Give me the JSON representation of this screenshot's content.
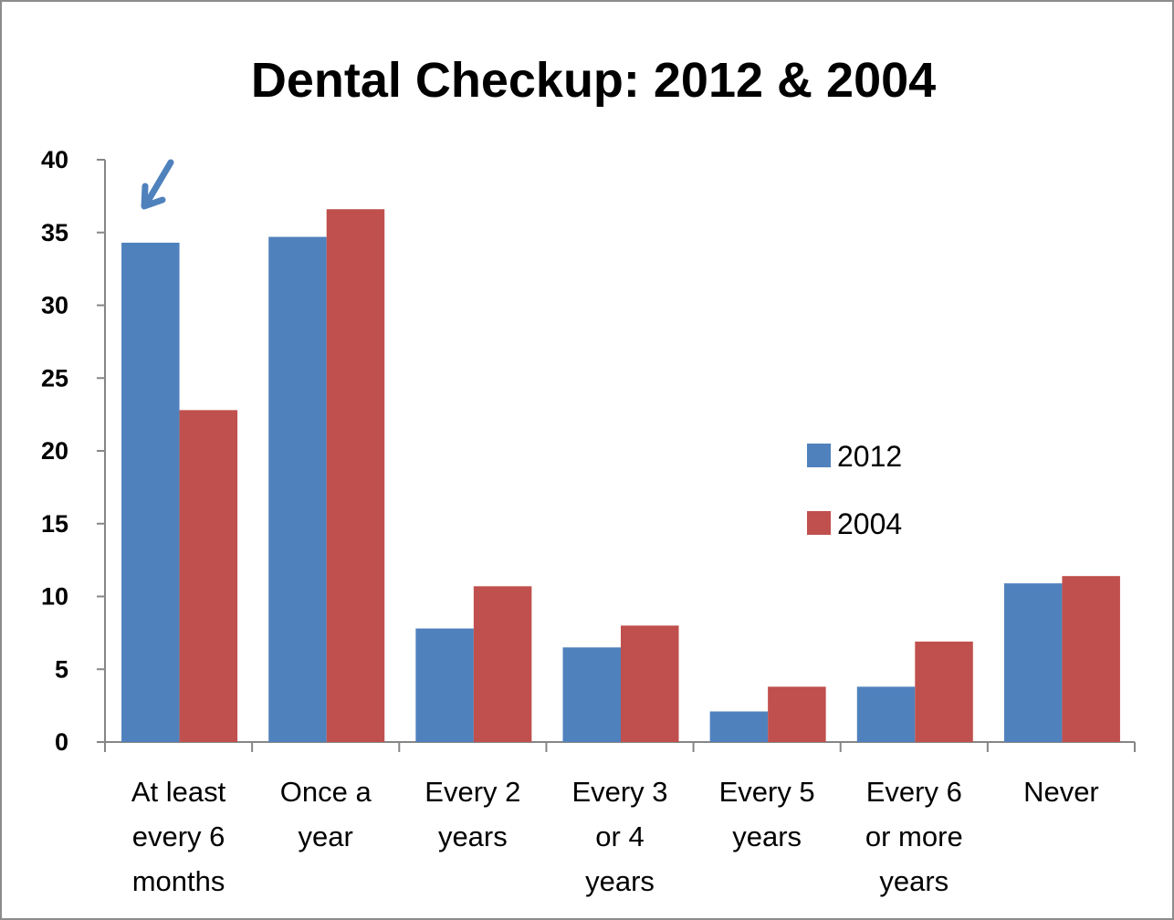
{
  "chart_data": {
    "type": "bar",
    "title": "Dental Checkup: 2012 & 2004",
    "xlabel": "",
    "ylabel": "",
    "ylim": [
      0,
      40
    ],
    "yticks": [
      "0",
      "5",
      "10",
      "15",
      "20",
      "25",
      "30",
      "35",
      "40"
    ],
    "categories": [
      [
        "At least",
        "every 6",
        "months"
      ],
      [
        "Once a",
        "year"
      ],
      [
        "Every 2",
        "years"
      ],
      [
        "Every 3",
        "or 4",
        "years"
      ],
      [
        "Every 5",
        "years"
      ],
      [
        "Every 6",
        "or more",
        "years"
      ],
      [
        "Never"
      ]
    ],
    "series": [
      {
        "name": "2012",
        "color": "#4f81bd",
        "values": [
          34.3,
          34.7,
          7.8,
          6.5,
          2.1,
          3.8,
          10.9
        ]
      },
      {
        "name": "2004",
        "color": "#c0504d",
        "values": [
          22.8,
          36.6,
          10.7,
          8.0,
          3.8,
          6.9,
          11.4
        ]
      }
    ],
    "legend_position": "right",
    "annotation": {
      "type": "arrow",
      "target_category": 0,
      "color": "#4f81bd"
    },
    "grid": false
  }
}
